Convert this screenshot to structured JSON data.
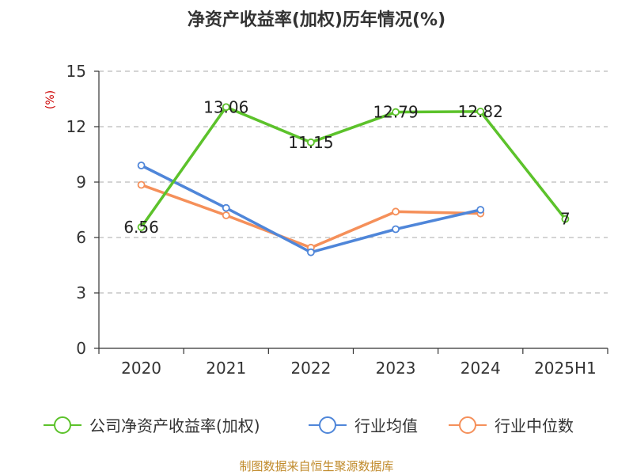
{
  "chart_data": {
    "type": "line",
    "title": "净资产收益率(加权)历年情况(%)",
    "ylabel": "(%)",
    "categories": [
      "2020",
      "2021",
      "2022",
      "2023",
      "2024",
      "2025H1"
    ],
    "ylim": [
      0,
      15
    ],
    "yticks": [
      0,
      3,
      6,
      9,
      12,
      15
    ],
    "grid": true,
    "legend_position": "bottom",
    "series": [
      {
        "name": "公司净资产收益率(加权)",
        "color": "#5cc22b",
        "values": [
          6.56,
          13.06,
          11.15,
          12.79,
          12.82,
          7
        ],
        "labels": [
          "6.56",
          "13.06",
          "11.15",
          "12.79",
          "12.82",
          "7"
        ]
      },
      {
        "name": "行业均值",
        "color": "#4f86d9",
        "values": [
          9.9,
          7.6,
          5.2,
          6.45,
          7.5,
          null
        ]
      },
      {
        "name": "行业中位数",
        "color": "#f5905a",
        "values": [
          8.85,
          7.2,
          5.45,
          7.4,
          7.3,
          null
        ]
      }
    ]
  },
  "source_note": "制图数据来自恒生聚源数据库"
}
